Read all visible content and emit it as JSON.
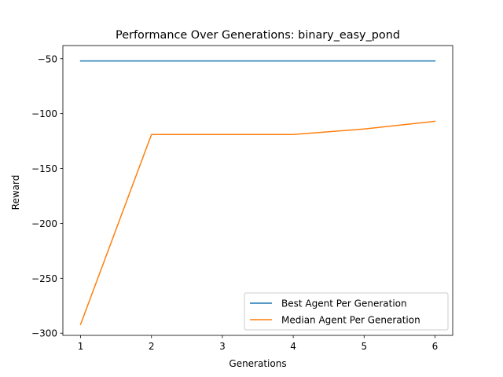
{
  "chart_data": {
    "type": "line",
    "title": "Performance Over Generations: binary_easy_pond",
    "xlabel": "Generations",
    "ylabel": "Reward",
    "x": [
      1,
      2,
      3,
      4,
      5,
      6
    ],
    "xlim": [
      0.75,
      6.25
    ],
    "ylim": [
      -302,
      -38
    ],
    "xticks": [
      1,
      2,
      3,
      4,
      5,
      6
    ],
    "yticks": [
      -50,
      -100,
      -150,
      -200,
      -250,
      -300
    ],
    "ytick_labels": [
      "−50",
      "−100",
      "−150",
      "−200",
      "−250",
      "−300"
    ],
    "grid": false,
    "legend_position": "lower-right",
    "series": [
      {
        "name": "Best Agent Per Generation",
        "color": "#1f77b4",
        "values": [
          -52,
          -52,
          -52,
          -52,
          -52,
          -52
        ]
      },
      {
        "name": "Median Agent Per Generation",
        "color": "#ff7f0e",
        "values": [
          -292,
          -119,
          -119,
          -119,
          -114,
          -107
        ]
      }
    ]
  }
}
